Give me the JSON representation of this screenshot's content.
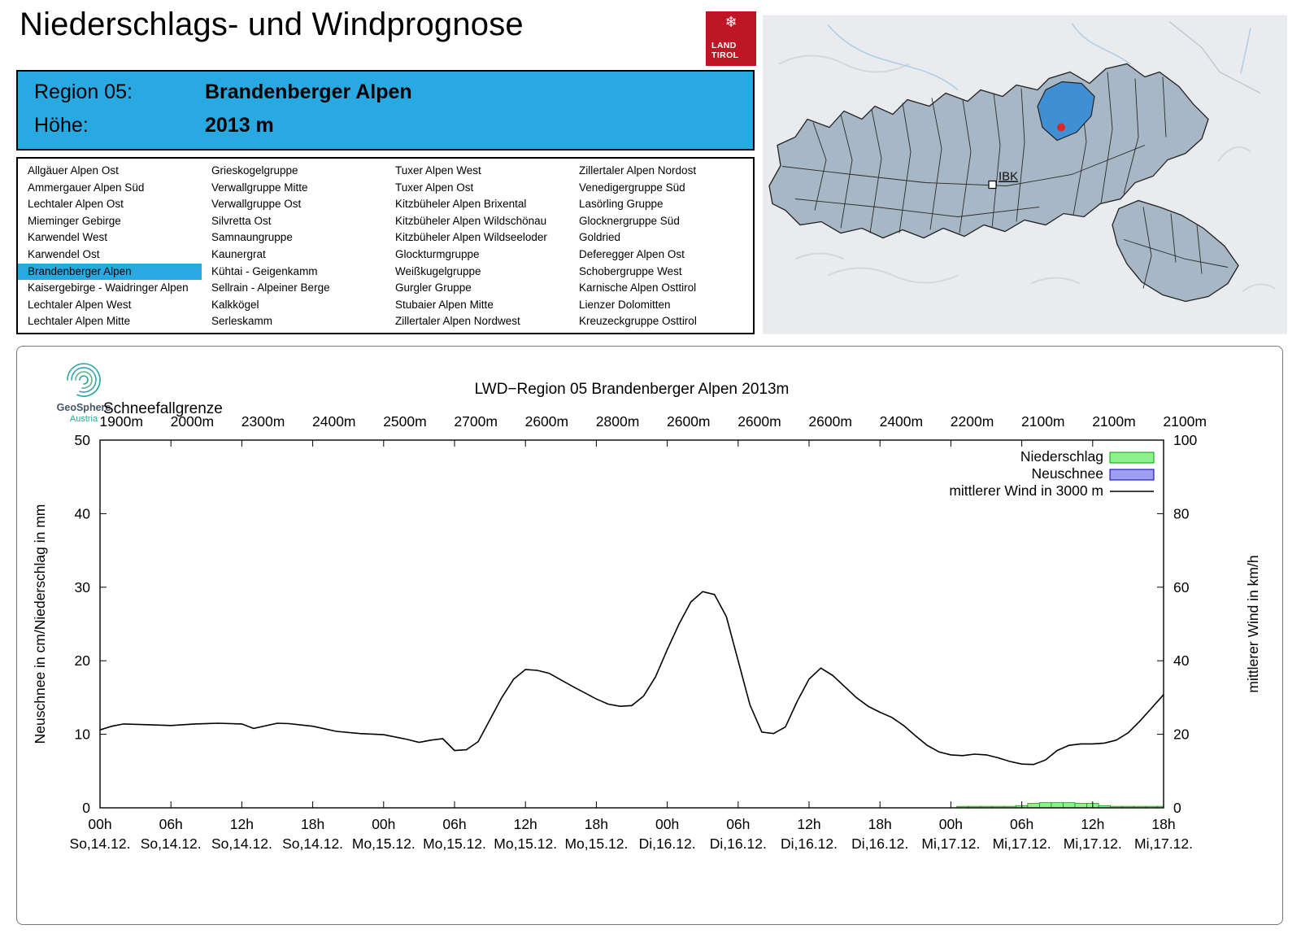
{
  "header": {
    "title": "Niederschlags- und Windprognose",
    "logo": {
      "line1": "LAND",
      "line2": "TIROL",
      "color": "#bf1626"
    }
  },
  "region_info": {
    "region_label": "Region 05:",
    "region_name": "Brandenberger Alpen",
    "altitude_label": "Höhe:",
    "altitude_value": "2013 m",
    "accent_color": "#29a9e1"
  },
  "region_list": {
    "selected": "Brandenberger Alpen",
    "columns": [
      [
        "Allgäuer Alpen Ost",
        "Ammergauer Alpen Süd",
        "Lechtaler Alpen Ost",
        "Mieminger Gebirge",
        "Karwendel West",
        "Karwendel Ost",
        "Brandenberger Alpen",
        "Kaisergebirge - Waidringer Alpen",
        "Lechtaler Alpen West",
        "Lechtaler Alpen Mitte"
      ],
      [
        "Grieskogelgruppe",
        "Verwallgruppe Mitte",
        "Verwallgruppe Ost",
        "Silvretta Ost",
        "Samnaungruppe",
        "Kaunergrat",
        "Kühtai - Geigenkamm",
        "Sellrain - Alpeiner Berge",
        "Kalkkögel",
        "Serleskamm"
      ],
      [
        "Tuxer Alpen West",
        "Tuxer Alpen Ost",
        "Kitzbüheler Alpen Brixental",
        "Kitzbüheler Alpen Wildschönau",
        "Kitzbüheler Alpen Wildseeloder",
        "Glockturmgruppe",
        "Weißkugelgruppe",
        "Gurgler Gruppe",
        "Stubaier Alpen Mitte",
        "Zillertaler Alpen Nordwest"
      ],
      [
        "Zillertaler Alpen Nordost",
        "Venedigergruppe Süd",
        "Lasörling Gruppe",
        "Glocknergruppe Süd",
        "Goldried",
        "Deferegger Alpen Ost",
        "Schobergruppe West",
        "Karnische Alpen Osttirol",
        "Lienzer Dolomitten",
        "Kreuzeckgruppe Osttirol"
      ]
    ]
  },
  "map": {
    "ibk_label": "IBK",
    "highlight_color": "#3f8fd4",
    "marker_color": "#d42a2a"
  },
  "geosphere": {
    "line1": "GeoSphere",
    "line2": "Austria"
  },
  "chart_data": {
    "type": "line",
    "title": "LWD−Region 05 Brandenberger Alpen 2013m",
    "snowline_label": "Schneefallgrenze",
    "snowline_values": [
      "1900m",
      "2000m",
      "2300m",
      "2400m",
      "2500m",
      "2700m",
      "2600m",
      "2800m",
      "2600m",
      "2600m",
      "2600m",
      "2400m",
      "2200m",
      "2100m",
      "2100m",
      "2100m"
    ],
    "ylabel_left": "Neuschnee in cm/Niederschlag in mm",
    "ylabel_right": "mittlerer Wind in km/h",
    "ylim_left": [
      0,
      50
    ],
    "ylim_right": [
      0,
      100
    ],
    "yticks_left": [
      0,
      10,
      20,
      30,
      40,
      50
    ],
    "yticks_right": [
      0,
      20,
      40,
      60,
      80,
      100
    ],
    "x_range_hours": [
      0,
      90
    ],
    "x_tick_step_hours": 6,
    "x_tick_hours": [
      "00h",
      "06h",
      "12h",
      "18h",
      "00h",
      "06h",
      "12h",
      "18h",
      "00h",
      "06h",
      "12h",
      "18h",
      "00h",
      "06h",
      "12h",
      "18h"
    ],
    "x_tick_days": [
      "So,14.12.",
      "So,14.12.",
      "So,14.12.",
      "So,14.12.",
      "Mo,15.12.",
      "Mo,15.12.",
      "Mo,15.12.",
      "Mo,15.12.",
      "Di,16.12.",
      "Di,16.12.",
      "Di,16.12.",
      "Di,16.12.",
      "Mi,17.12.",
      "Mi,17.12.",
      "Mi,17.12.",
      "Mi,17.12."
    ],
    "legend": [
      {
        "label": "Niederschlag",
        "type": "box",
        "fill": "#8df28d",
        "stroke": "#00a000"
      },
      {
        "label": "Neuschnee",
        "type": "box",
        "fill": "#9e9ef2",
        "stroke": "#0000b0"
      },
      {
        "label": "mittlerer Wind in 3000 m",
        "type": "line",
        "stroke": "#000000"
      }
    ],
    "series": [
      {
        "name": "mittlerer Wind in 3000 m",
        "axis": "right",
        "unit": "km/h",
        "style": "line",
        "hours": [
          0,
          1,
          2,
          4,
          6,
          8,
          10,
          12,
          13,
          15,
          16,
          18,
          20,
          22,
          24,
          26,
          27,
          28,
          29,
          30,
          31,
          32,
          33,
          34,
          35,
          36,
          37,
          38,
          40,
          42,
          43,
          44,
          45,
          46,
          47,
          48,
          49,
          50,
          51,
          52,
          53,
          54,
          55,
          56,
          57,
          58,
          59,
          60,
          61,
          62,
          63,
          64,
          65,
          66,
          67,
          68,
          69,
          70,
          71,
          72,
          73,
          74,
          75,
          76,
          77,
          78,
          79,
          80,
          81,
          82,
          83,
          84,
          85,
          86,
          87,
          88,
          89,
          90
        ],
        "values": [
          21.2,
          22.2,
          22.8,
          22.6,
          22.4,
          22.8,
          23,
          22.8,
          21.6,
          23,
          22.9,
          22.2,
          20.8,
          20.2,
          19.9,
          18.6,
          17.8,
          18.4,
          18.8,
          15.6,
          15.8,
          18,
          24,
          30,
          35,
          37.6,
          37.4,
          36.6,
          33,
          29.6,
          28.2,
          27.6,
          27.8,
          30.4,
          35.6,
          43,
          50,
          56,
          58.8,
          58,
          52,
          40,
          28,
          20.6,
          20.2,
          22,
          29,
          35,
          38,
          36,
          33,
          30,
          27.6,
          26,
          24.6,
          22.4,
          19.6,
          17,
          15.2,
          14.4,
          14.2,
          14.6,
          14.4,
          13.6,
          12.6,
          11.9,
          11.8,
          13,
          15.6,
          17,
          17.4,
          17.4,
          17.6,
          18.4,
          20.4,
          23.6,
          27.2,
          30.8
        ]
      },
      {
        "name": "Niederschlag",
        "axis": "left",
        "unit": "mm",
        "style": "bars",
        "hours": [
          73,
          74,
          75,
          76,
          77,
          78,
          79,
          80,
          81,
          82,
          83,
          84,
          85,
          86,
          87,
          88,
          89,
          90
        ],
        "values": [
          0.2,
          0.2,
          0.2,
          0.2,
          0.2,
          0.3,
          0.6,
          0.7,
          0.7,
          0.7,
          0.6,
          0.6,
          0.3,
          0.2,
          0.2,
          0.2,
          0.2,
          0.2
        ]
      },
      {
        "name": "Neuschnee",
        "axis": "left",
        "unit": "cm",
        "style": "bars",
        "hours": [],
        "values": []
      }
    ]
  }
}
